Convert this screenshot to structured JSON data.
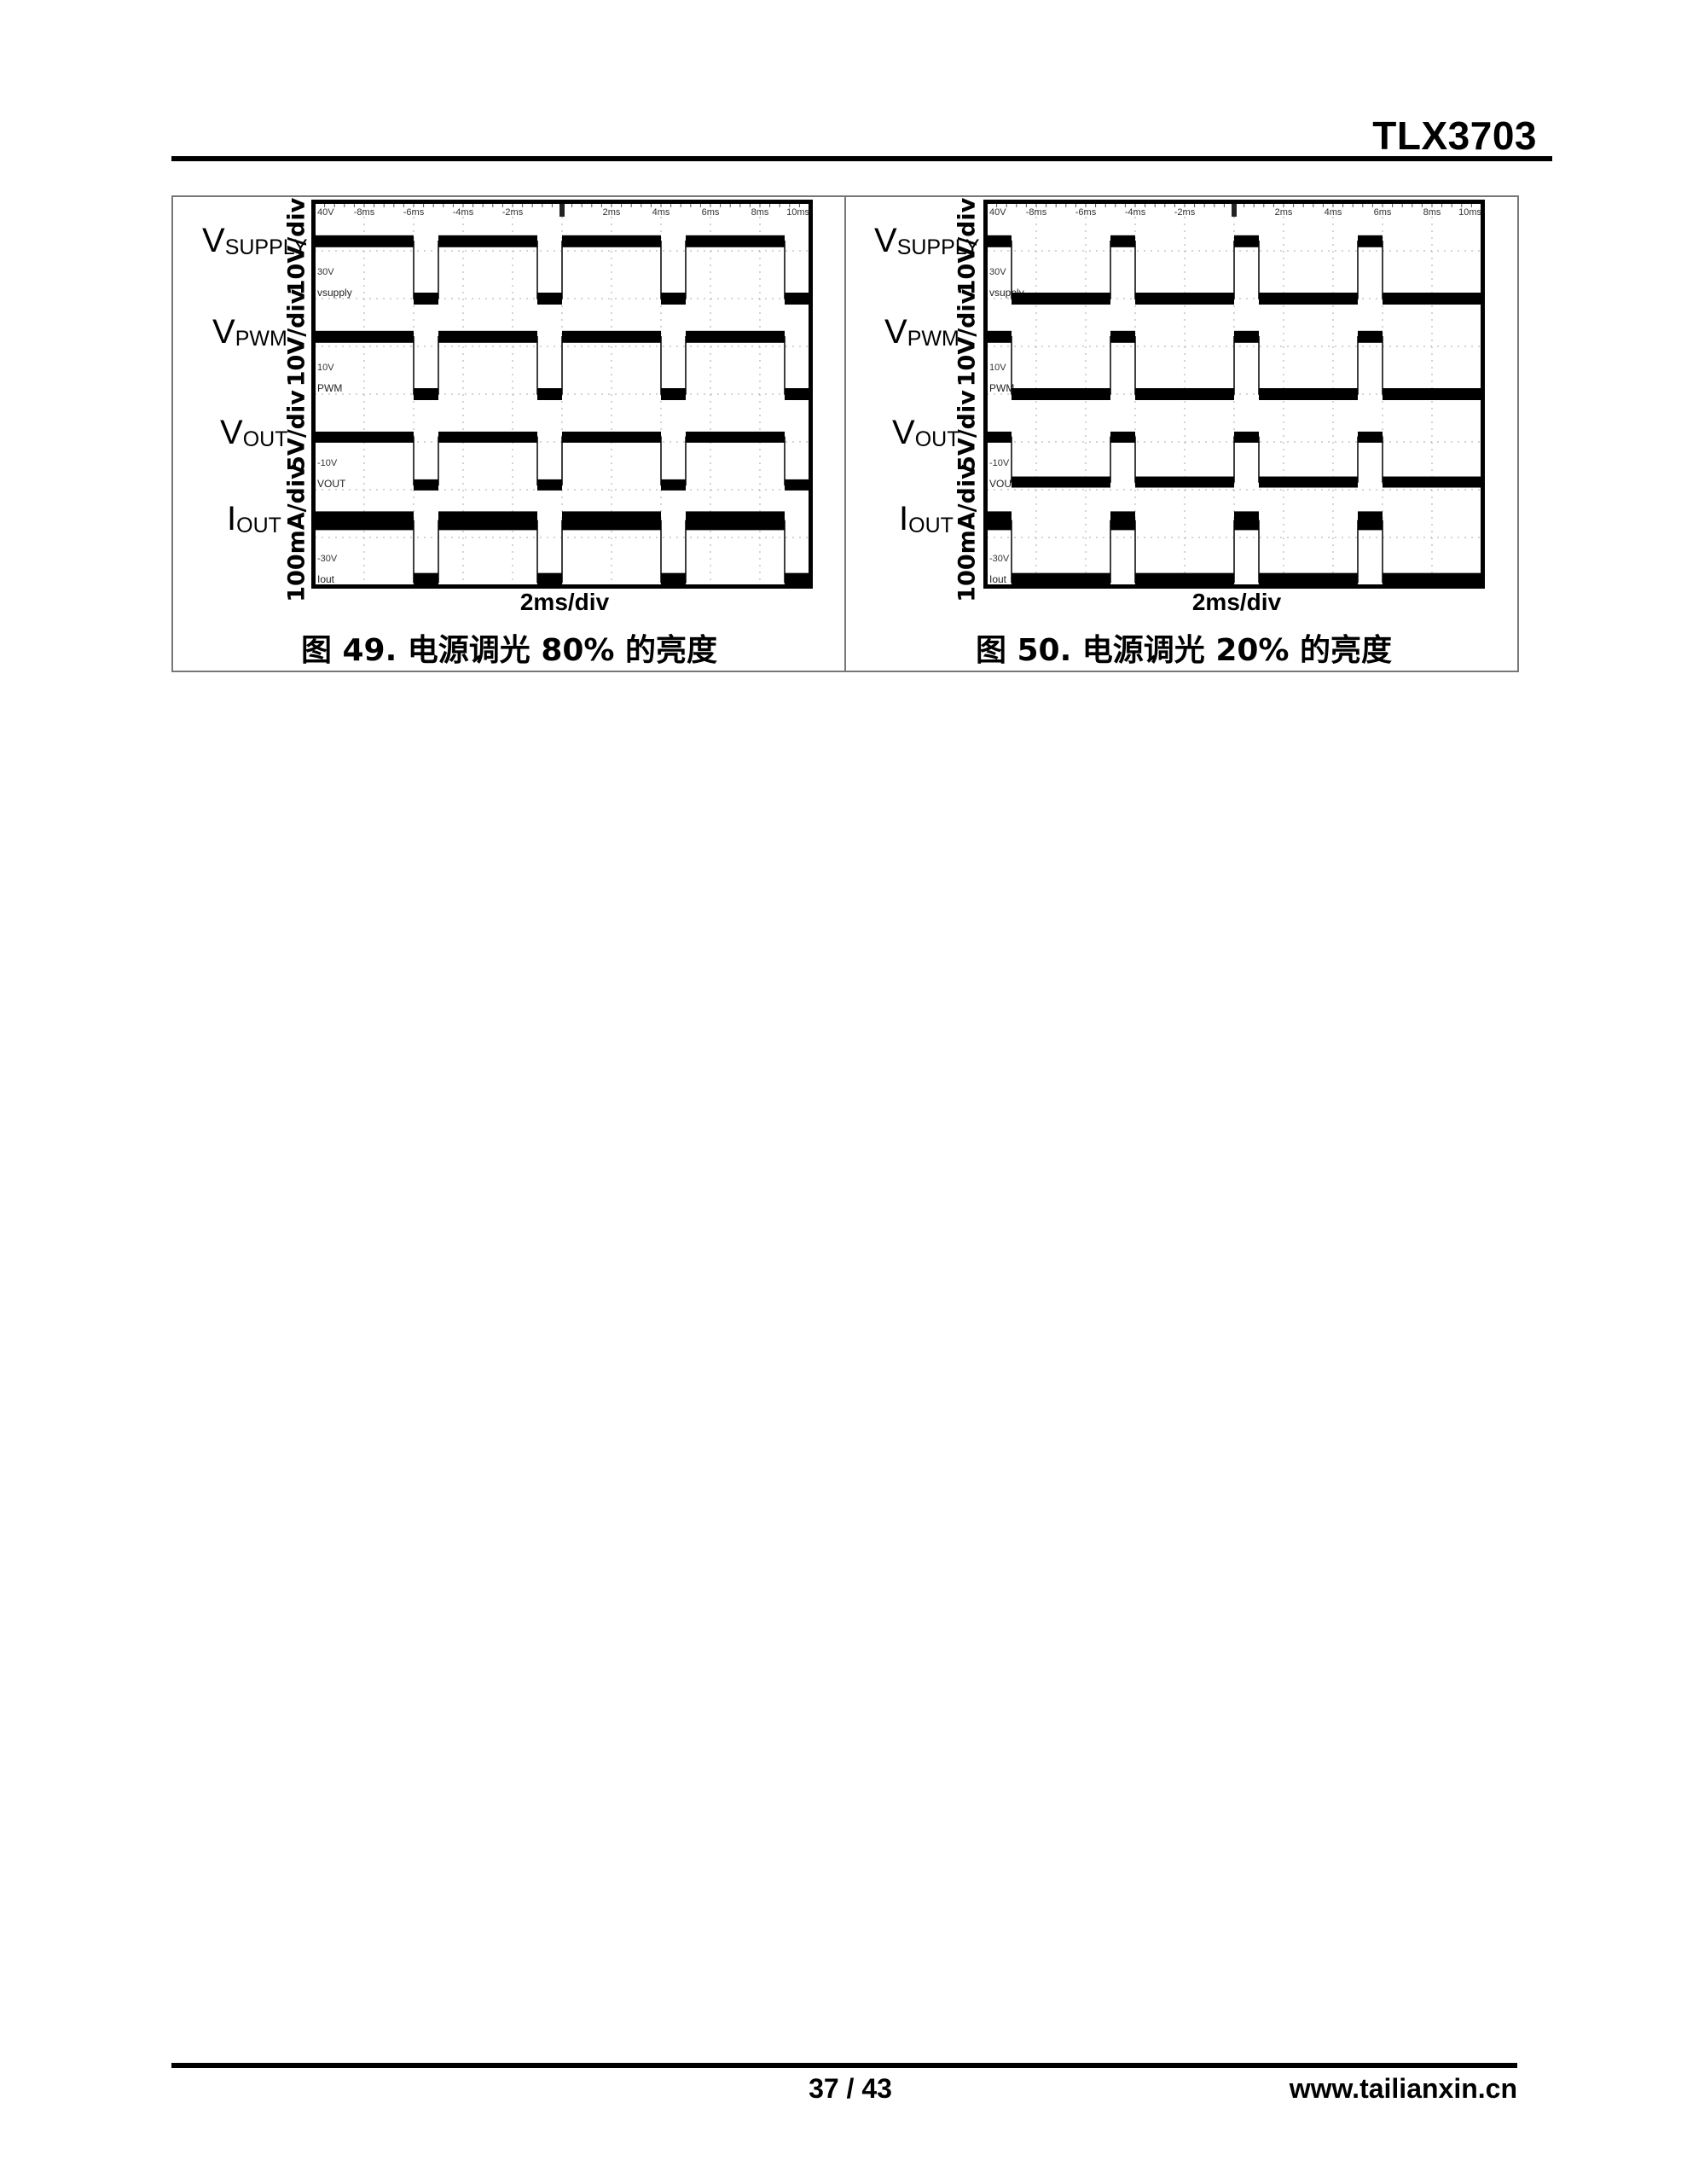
{
  "header": {
    "title": "TLX3703"
  },
  "footer": {
    "page": "37 / 43",
    "website": "www.tailianxin.cn"
  },
  "chart_data": [
    {
      "type": "line",
      "title": "图 49. 电源调光 80% 的亮度",
      "xlabel": "2ms/div",
      "x_unit": "ms",
      "xlim": [
        -10,
        10
      ],
      "grid": true,
      "top_tick_labels": [
        "40V",
        "-8ms",
        "-6ms",
        "-4ms",
        "-2ms",
        "",
        "2ms",
        "4ms",
        "6ms",
        "8ms",
        "10ms"
      ],
      "level_labels": [
        "30V",
        "10V",
        "-10V",
        "-30V"
      ],
      "high_intervals": [
        [
          -10,
          -6
        ],
        [
          -5,
          -1
        ],
        [
          0,
          4
        ],
        [
          5,
          9
        ]
      ],
      "channels": [
        {
          "label": "V",
          "sub": "SUPPLY",
          "scale": "10V/div",
          "tag": "vsupply",
          "high": 12,
          "low": 0,
          "unit": "V"
        },
        {
          "label": "V",
          "sub": "PWM",
          "scale": "10V/div",
          "tag": "PWM",
          "high": 12,
          "low": 0,
          "unit": "V"
        },
        {
          "label": "V",
          "sub": "OUT",
          "scale": "5V/div",
          "tag": "VOUT",
          "high": 5.5,
          "low": 0.5,
          "unit": "V"
        },
        {
          "label": "I",
          "sub": "OUT",
          "scale": "100mA/div",
          "tag": "Iout",
          "high": 135,
          "low": 6,
          "unit": "mA"
        }
      ]
    },
    {
      "type": "line",
      "title": "图 50. 电源调光 20% 的亮度",
      "xlabel": "2ms/div",
      "x_unit": "ms",
      "xlim": [
        -10,
        10
      ],
      "grid": true,
      "top_tick_labels": [
        "40V",
        "-8ms",
        "-6ms",
        "-4ms",
        "-2ms",
        "",
        "2ms",
        "4ms",
        "6ms",
        "8ms",
        "10ms"
      ],
      "level_labels": [
        "30V",
        "10V",
        "-10V",
        "-30V"
      ],
      "high_intervals": [
        [
          -10,
          -9
        ],
        [
          -5,
          -4
        ],
        [
          0,
          1
        ],
        [
          5,
          6
        ]
      ],
      "channels": [
        {
          "label": "V",
          "sub": "SUPPLY",
          "scale": "10V/div",
          "tag": "vsupply",
          "high": 12,
          "low": 0,
          "unit": "V"
        },
        {
          "label": "V",
          "sub": "PWM",
          "scale": "10V/div",
          "tag": "PWM",
          "high": 12,
          "low": 0,
          "unit": "V"
        },
        {
          "label": "V",
          "sub": "OUT",
          "scale": "5V/div",
          "tag": "VOUT",
          "high": 5.5,
          "low": 0.8,
          "unit": "V"
        },
        {
          "label": "I",
          "sub": "OUT",
          "scale": "100mA/div",
          "tag": "Iout",
          "high": 135,
          "low": 6,
          "unit": "mA"
        }
      ]
    }
  ]
}
